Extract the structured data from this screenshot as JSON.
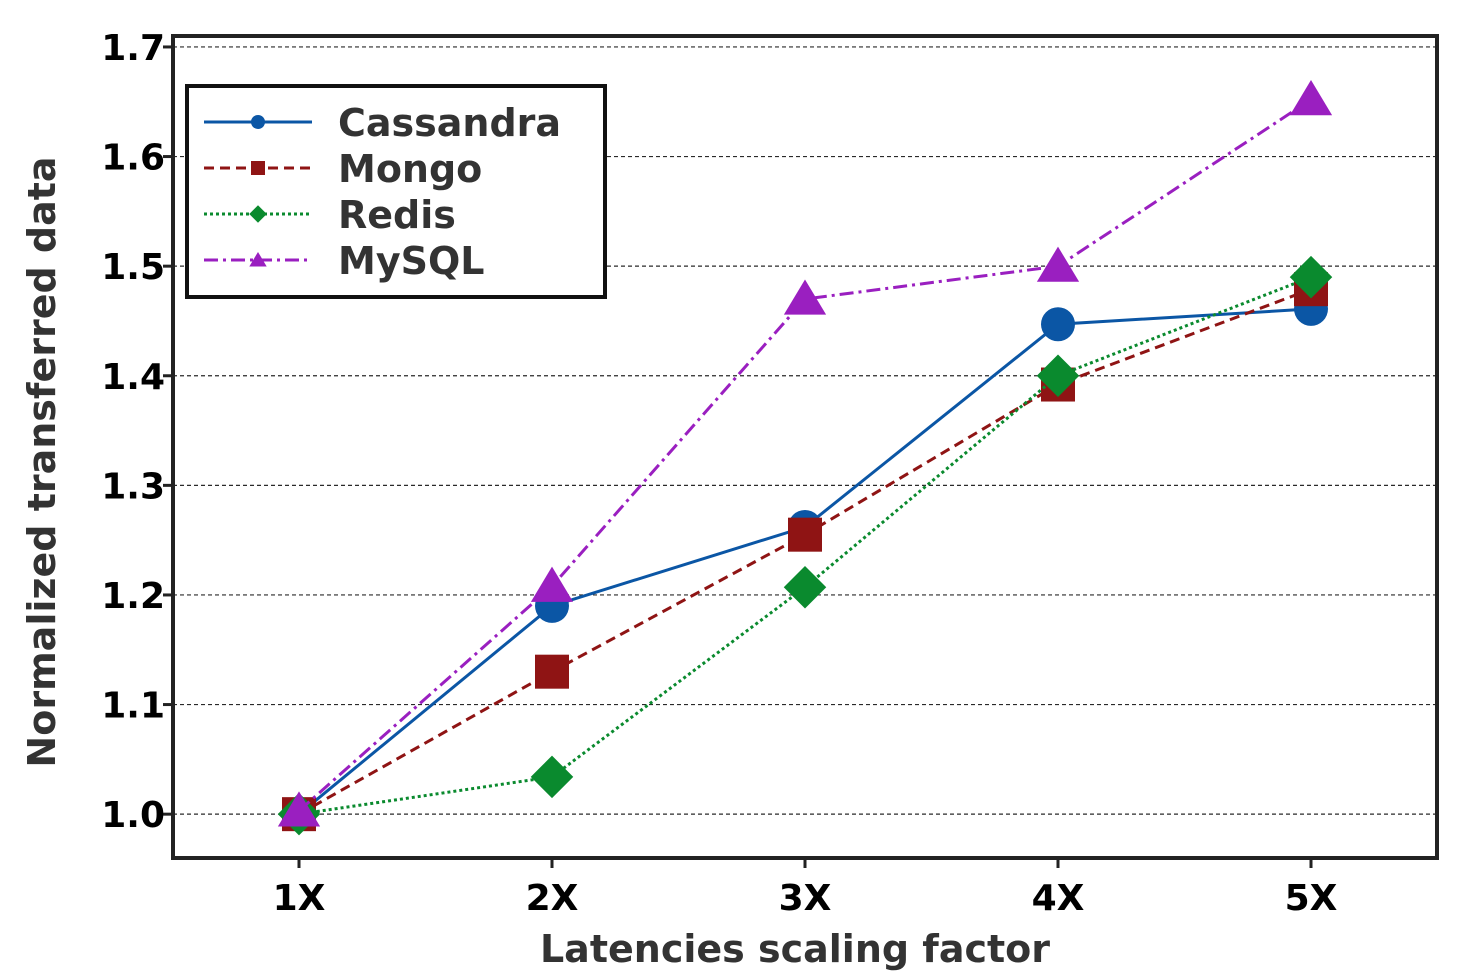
{
  "chart_data": {
    "type": "line",
    "title": "",
    "xlabel": "Latencies scaling  factor",
    "ylabel": "Normalized transferred data",
    "categories": [
      "1X",
      "2X",
      "3X",
      "4X",
      "5X"
    ],
    "ylim": [
      0.96,
      1.71
    ],
    "yticks": [
      1.0,
      1.1,
      1.2,
      1.3,
      1.4,
      1.5,
      1.6,
      1.7
    ],
    "ytick_labels": [
      "1.0",
      "1.1",
      "1.2",
      "1.3",
      "1.4",
      "1.5",
      "1.6",
      "1.7"
    ],
    "grid": "horizontal-dashed",
    "legend_position": "top-left",
    "series": [
      {
        "name": "Cassandra",
        "values": [
          1.0,
          1.19,
          1.262,
          1.447,
          1.461
        ],
        "color": "#0b56a5",
        "marker": "circle",
        "dash": "solid"
      },
      {
        "name": "Mongo",
        "values": [
          1.0,
          1.13,
          1.255,
          1.392,
          1.479
        ],
        "color": "#8f1414",
        "marker": "square",
        "dash": "dashed"
      },
      {
        "name": "Redis",
        "values": [
          1.0,
          1.034,
          1.207,
          1.4,
          1.49
        ],
        "color": "#0a8a2e",
        "marker": "diamond",
        "dash": "dotted"
      },
      {
        "name": "MySQL",
        "values": [
          1.003,
          1.208,
          1.47,
          1.5,
          1.652
        ],
        "color": "#9a1fc0",
        "marker": "triangle",
        "dash": "dashdot"
      }
    ]
  }
}
